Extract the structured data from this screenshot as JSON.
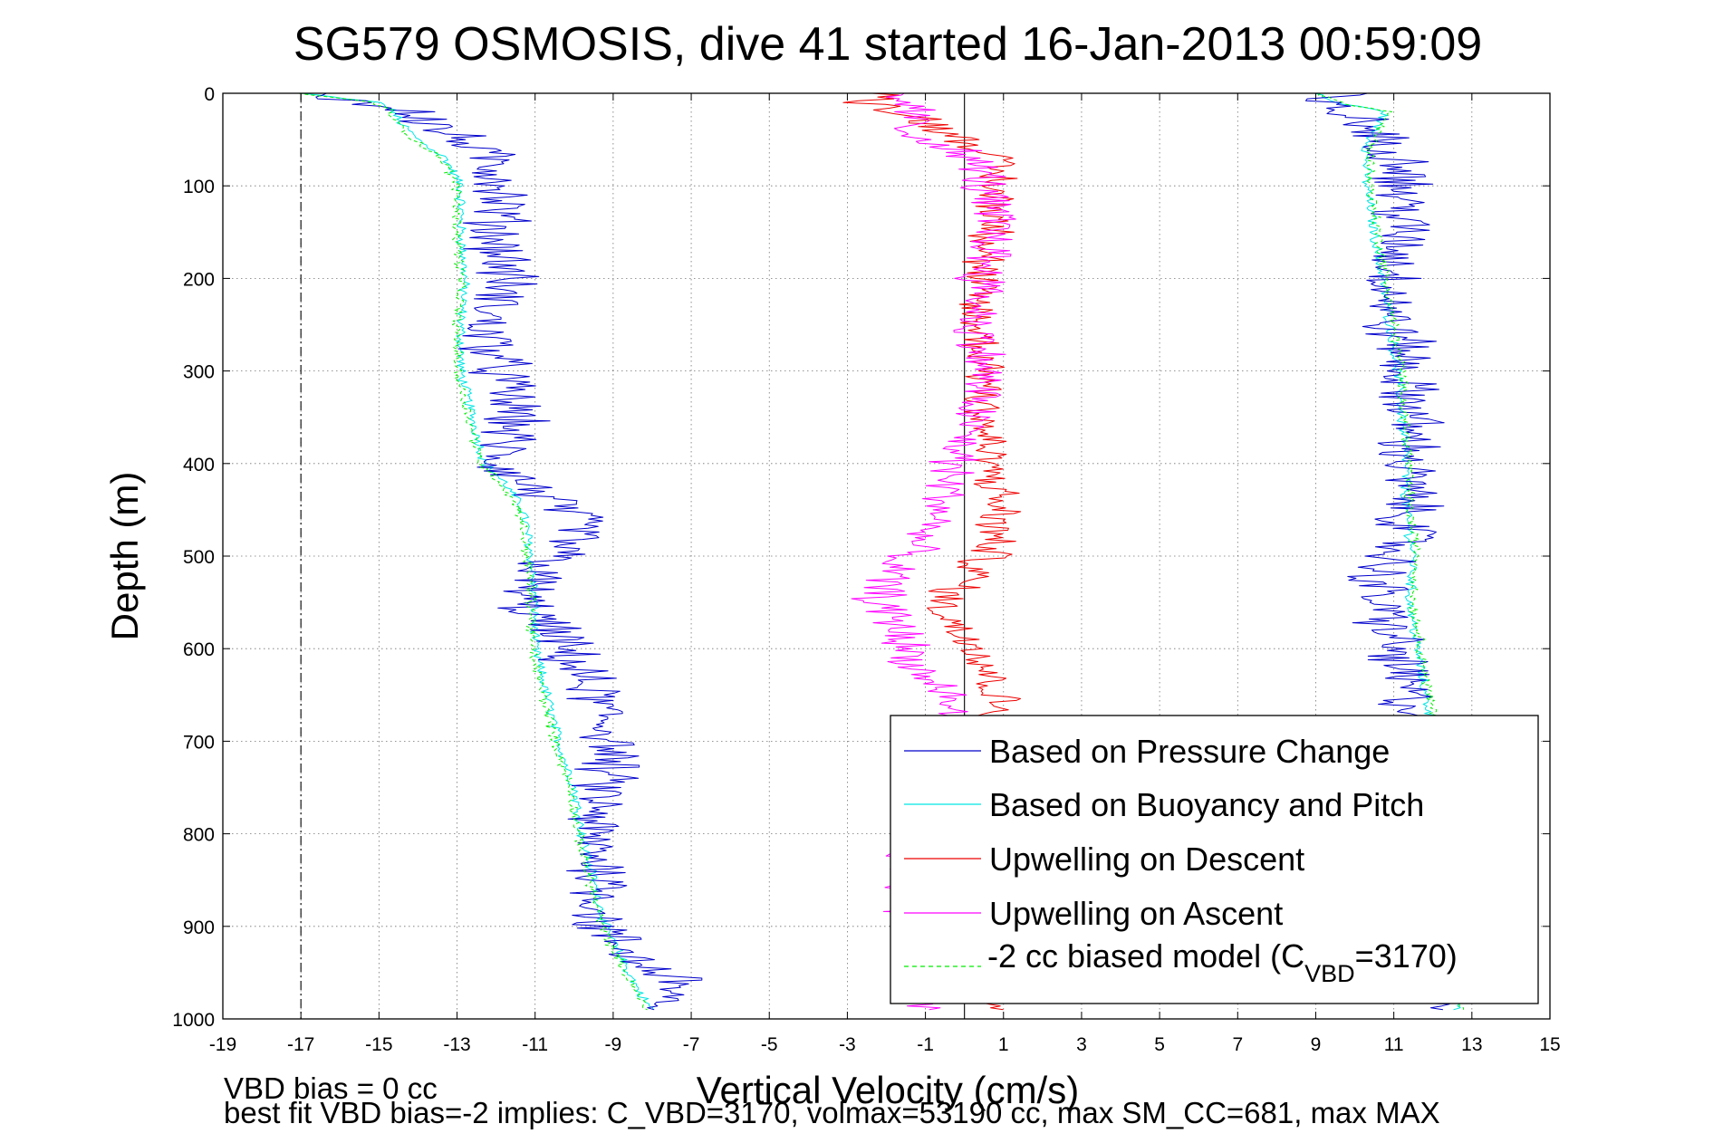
{
  "chart_data": {
    "type": "line",
    "title": "SG579 OSMOSIS, dive 41 started 16-Jan-2013 00:59:09",
    "xlabel": "Vertical Velocity (cm/s)",
    "ylabel": "Depth (m)",
    "xlim": [
      -19,
      15
    ],
    "ylim": [
      0,
      1000
    ],
    "y_reversed": true,
    "grid": true,
    "legend_position": "bottom-right",
    "xticks": [
      "-19",
      "-17",
      "-15",
      "-13",
      "-11",
      "-9",
      "-7",
      "-5",
      "-3",
      "-1",
      "1",
      "3",
      "5",
      "7",
      "9",
      "11",
      "13",
      "15"
    ],
    "yticks": [
      "0",
      "100",
      "200",
      "300",
      "400",
      "500",
      "600",
      "700",
      "800",
      "900",
      "1000"
    ],
    "reference_lines": [
      {
        "x": -17,
        "style": "dash-dot",
        "color": "#000000"
      },
      {
        "x": 0,
        "style": "solid",
        "color": "#000000"
      }
    ],
    "legend": [
      {
        "label": "Based on Pressure Change",
        "color": "#0000cc",
        "style": "solid"
      },
      {
        "label": "Based on Buoyancy and Pitch",
        "color": "#00e5e5",
        "style": "solid"
      },
      {
        "label": "Upwelling on Descent",
        "color": "#ee0000",
        "style": "solid"
      },
      {
        "label": "Upwelling on Ascent",
        "color": "#ff00ff",
        "style": "solid"
      },
      {
        "label_pre": "-2 cc biased model (C",
        "label_sub": "VBD",
        "label_post": "=3170)",
        "color": "#00ee00",
        "style": "dashed"
      }
    ],
    "series": [
      {
        "name": "Based on Pressure Change",
        "segment": "descent",
        "color": "#0000cc",
        "noise": 0.75,
        "depth": [
          0,
          10,
          20,
          40,
          60,
          80,
          100,
          150,
          200,
          250,
          300,
          350,
          400,
          450,
          470,
          500,
          520,
          550,
          580,
          600,
          650,
          700,
          750,
          800,
          850,
          900,
          940,
          960,
          980,
          990
        ],
        "velocity": [
          -16.5,
          -15.5,
          -14,
          -13.4,
          -12.5,
          -12,
          -11.8,
          -12,
          -11.7,
          -12.3,
          -11.9,
          -11.5,
          -12,
          -10.3,
          -9.8,
          -10.5,
          -11,
          -11.4,
          -10.6,
          -10.3,
          -9.5,
          -9,
          -9.3,
          -9.6,
          -9.2,
          -9.4,
          -8.3,
          -7.2,
          -7.6,
          -8.3
        ]
      },
      {
        "name": "Based on Pressure Change",
        "segment": "ascent",
        "color": "#0000cc",
        "noise": 0.75,
        "depth": [
          990,
          950,
          900,
          850,
          800,
          750,
          700,
          670,
          650,
          600,
          570,
          550,
          520,
          500,
          480,
          450,
          400,
          350,
          300,
          270,
          250,
          220,
          200,
          150,
          100,
          80,
          60,
          40,
          20,
          10,
          5,
          0
        ],
        "velocity": [
          12,
          12,
          12,
          11.8,
          11.6,
          11.5,
          11.5,
          11.5,
          11.3,
          11,
          10.8,
          10.6,
          10.6,
          10.9,
          11.3,
          11.4,
          11.3,
          11.5,
          11.2,
          11.3,
          10.8,
          11,
          11,
          11.2,
          11.2,
          11.5,
          10.8,
          10.4,
          9.8,
          9,
          8.7,
          10
        ]
      },
      {
        "name": "Based on Buoyancy and Pitch",
        "segment": "descent",
        "color": "#00e5e5",
        "noise": 0.12,
        "depth": [
          0,
          10,
          20,
          30,
          50,
          70,
          100,
          150,
          200,
          250,
          300,
          350,
          400,
          420,
          450,
          500,
          550,
          600,
          650,
          700,
          750,
          800,
          850,
          900,
          950,
          980,
          990
        ],
        "velocity": [
          -17,
          -15,
          -14.6,
          -14.5,
          -14,
          -13.3,
          -12.9,
          -12.9,
          -12.8,
          -12.9,
          -12.9,
          -12.6,
          -12.3,
          -11.8,
          -11.3,
          -11.1,
          -11,
          -11,
          -10.7,
          -10.4,
          -10,
          -9.8,
          -9.5,
          -9.2,
          -8.6,
          -8.2,
          -8
        ]
      },
      {
        "name": "Based on Buoyancy and Pitch",
        "segment": "ascent",
        "color": "#00e5e5",
        "noise": 0.12,
        "depth": [
          990,
          950,
          900,
          850,
          800,
          750,
          700,
          650,
          600,
          550,
          500,
          450,
          400,
          350,
          300,
          250,
          200,
          150,
          100,
          80,
          60,
          40,
          20,
          10,
          0
        ],
        "velocity": [
          12.6,
          12.6,
          12.5,
          12.4,
          12.3,
          12.2,
          12.1,
          11.8,
          11.6,
          11.4,
          11.5,
          11.3,
          11.3,
          11.2,
          11.1,
          10.9,
          10.7,
          10.5,
          10.3,
          10.3,
          10.3,
          10.5,
          10.8,
          9.5,
          9
        ]
      },
      {
        "name": "Upwelling on Descent",
        "color": "#ee0000",
        "noise": 0.55,
        "depth": [
          0,
          10,
          20,
          40,
          60,
          80,
          100,
          150,
          200,
          250,
          300,
          350,
          400,
          450,
          500,
          520,
          550,
          580,
          600,
          650,
          700,
          750,
          800,
          850,
          900,
          950,
          990
        ],
        "velocity": [
          -2,
          -2.5,
          -1.5,
          -0.5,
          0.5,
          0.8,
          0.8,
          0.8,
          0.3,
          0.3,
          0.6,
          0.5,
          0.6,
          0.9,
          0.6,
          0.2,
          -0.6,
          -0.2,
          0.5,
          0.8,
          1.2,
          1.2,
          1,
          0.9,
          0.8,
          0.7,
          0.5
        ]
      },
      {
        "name": "Upwelling on Ascent",
        "color": "#ff00ff",
        "noise": 0.6,
        "depth": [
          0,
          10,
          20,
          40,
          60,
          80,
          100,
          150,
          200,
          250,
          300,
          350,
          400,
          450,
          480,
          500,
          520,
          550,
          580,
          600,
          620,
          650,
          680,
          700,
          750,
          800,
          850,
          900,
          950,
          990
        ],
        "velocity": [
          -2,
          -1.5,
          -1.3,
          -1.5,
          -0.3,
          0.4,
          0.5,
          0.8,
          0.5,
          0.3,
          0.5,
          0.2,
          -0.3,
          -0.6,
          -1.1,
          -1.6,
          -2,
          -2.2,
          -1.6,
          -1.5,
          -1.3,
          -0.5,
          -0.3,
          -0.3,
          -0.8,
          -1.3,
          -1.4,
          -1.3,
          -1.2,
          -1
        ]
      },
      {
        "name": "-2 cc biased model",
        "segment": "descent",
        "color": "#00ee00",
        "style": "dashed",
        "noise": 0.12,
        "depth": [
          0,
          10,
          20,
          30,
          50,
          70,
          100,
          150,
          200,
          250,
          300,
          350,
          400,
          420,
          450,
          500,
          550,
          600,
          650,
          700,
          750,
          800,
          850,
          900,
          950,
          980,
          990
        ],
        "velocity": [
          -17.1,
          -15.1,
          -14.7,
          -14.6,
          -14.1,
          -13.4,
          -13,
          -13,
          -12.9,
          -13,
          -13,
          -12.7,
          -12.4,
          -11.9,
          -11.4,
          -11.2,
          -11.1,
          -11.1,
          -10.8,
          -10.5,
          -10.1,
          -9.9,
          -9.6,
          -9.3,
          -8.7,
          -8.3,
          -8.1
        ]
      },
      {
        "name": "-2 cc biased model",
        "segment": "ascent",
        "color": "#00ee00",
        "style": "dashed",
        "noise": 0.12,
        "depth": [
          990,
          950,
          900,
          850,
          800,
          750,
          700,
          650,
          600,
          550,
          500,
          450,
          400,
          350,
          300,
          250,
          200,
          150,
          100,
          80,
          60,
          40,
          20,
          10,
          0
        ],
        "velocity": [
          12.7,
          12.7,
          12.6,
          12.5,
          12.4,
          12.3,
          12.2,
          11.9,
          11.7,
          11.5,
          11.6,
          11.4,
          11.4,
          11.3,
          11.2,
          11,
          10.8,
          10.6,
          10.4,
          10.4,
          10.4,
          10.6,
          10.9,
          9.6,
          9.1
        ]
      }
    ],
    "annotations": [
      "VBD bias = 0 cc",
      "best fit VBD bias=-2 implies: C_VBD=3170, volmax=53190 cc, max SM_CC=681, max MAX"
    ]
  }
}
